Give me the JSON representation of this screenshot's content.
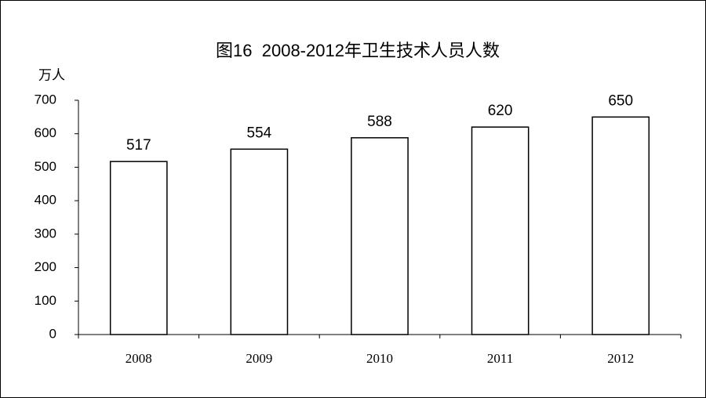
{
  "chart_data": {
    "type": "bar",
    "title": "图16  2008-2012年卫生技术人员人数",
    "y_label": "万人",
    "categories": [
      "2008",
      "2009",
      "2010",
      "2011",
      "2012"
    ],
    "values": [
      517,
      554,
      588,
      620,
      650
    ],
    "color": "#ffffff",
    "edge_color": "#000000",
    "ylim": [
      0,
      700
    ],
    "yticks": [
      0,
      100,
      200,
      300,
      400,
      500,
      600,
      700
    ],
    "grid": false
  }
}
